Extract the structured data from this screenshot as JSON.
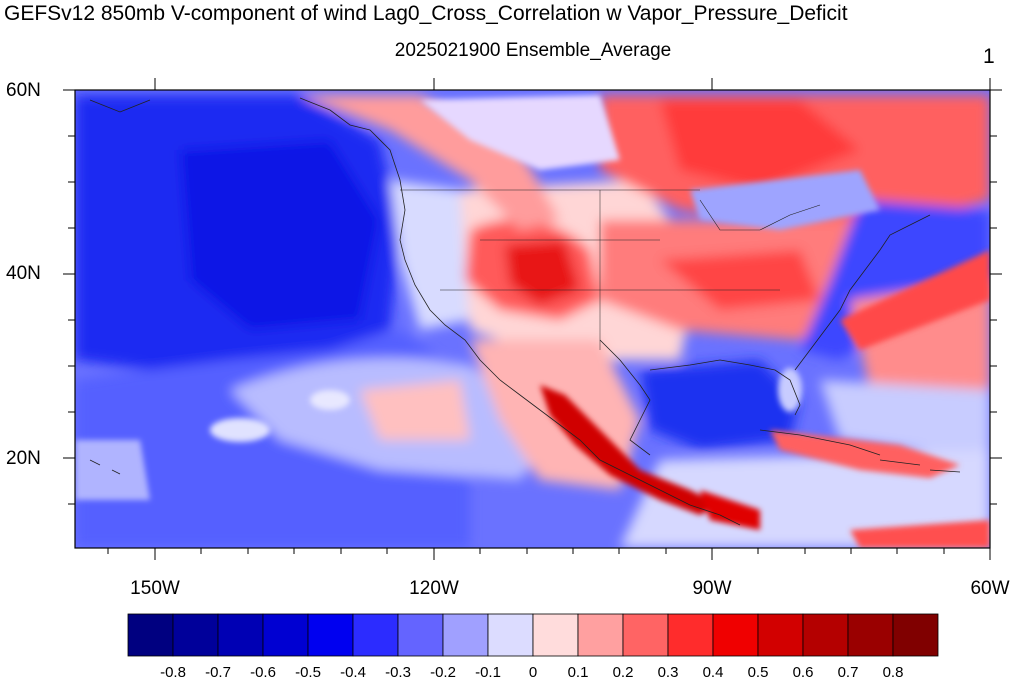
{
  "title": "GEFSv12 850mb V-component of wind Lag0_Cross_Correlation w Vapor_Pressure_Deficit",
  "subtitle": "2025021900 Ensemble_Average",
  "panel_number": "1",
  "lat_labels": [
    "60N",
    "40N",
    "20N"
  ],
  "lon_labels": [
    "150W",
    "120W",
    "90W",
    "60W"
  ],
  "colorbar": {
    "labels": [
      "-0.8",
      "-0.7",
      "-0.6",
      "-0.5",
      "-0.4",
      "-0.3",
      "-0.2",
      "-0.1",
      "0",
      "0.1",
      "0.2",
      "0.3",
      "0.4",
      "0.5",
      "0.6",
      "0.7",
      "0.8"
    ],
    "colors": [
      "#000080",
      "#00009a",
      "#0000b4",
      "#0000d2",
      "#0000f0",
      "#2c2cff",
      "#6464ff",
      "#a0a0ff",
      "#dcdcff",
      "#ffdcdc",
      "#ffa0a0",
      "#ff6464",
      "#ff2c2c",
      "#f00000",
      "#d20000",
      "#b40000",
      "#9a0000",
      "#800000"
    ]
  },
  "colors": {
    "pacific_blue": "#1a2cf0",
    "mid_blue": "#3c4cff",
    "light_blue": "#8c94ff",
    "pale_blue": "#c8ccff",
    "pale_red": "#ffd0d0",
    "light_red": "#ff8c8c",
    "red": "#ff3c3c",
    "dark_red": "#d00000"
  }
}
